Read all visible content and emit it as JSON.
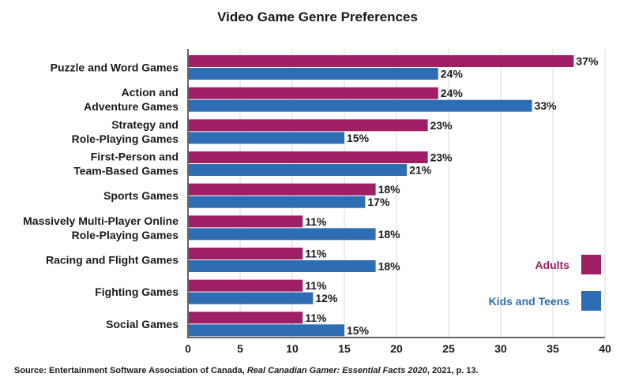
{
  "chart_data": {
    "type": "bar",
    "orientation": "horizontal",
    "title": "Video Game Genre Preferences",
    "categories": [
      [
        "Puzzle and Word Games"
      ],
      [
        "Action and",
        "Adventure Games"
      ],
      [
        "Strategy and",
        "Role-Playing Games"
      ],
      [
        "First-Person and",
        "Team-Based Games"
      ],
      [
        "Sports Games"
      ],
      [
        "Massively Multi-Player Online",
        "Role-Playing Games"
      ],
      [
        "Racing and Flight Games"
      ],
      [
        "Fighting Games"
      ],
      [
        "Social Games"
      ]
    ],
    "series": [
      {
        "name": "Adults",
        "color": "#9e1f63",
        "values": [
          37,
          24,
          23,
          23,
          18,
          11,
          11,
          11,
          11
        ]
      },
      {
        "name": "Kids and Teens",
        "color": "#2e6db4",
        "values": [
          24,
          33,
          15,
          21,
          17,
          18,
          18,
          12,
          15
        ]
      }
    ],
    "value_suffix": "%",
    "xlim": [
      0,
      40
    ],
    "xticks": [
      0,
      5,
      10,
      15,
      20,
      25,
      30,
      35,
      40
    ],
    "grid": "vertical",
    "legend_position": "bottom-right"
  },
  "source": {
    "prefix": "Source: Entertainment Software Association of Canada, ",
    "italic": "Real Canadian Gamer: Essential Facts 2020",
    "suffix": ", 2021, p. 13."
  }
}
